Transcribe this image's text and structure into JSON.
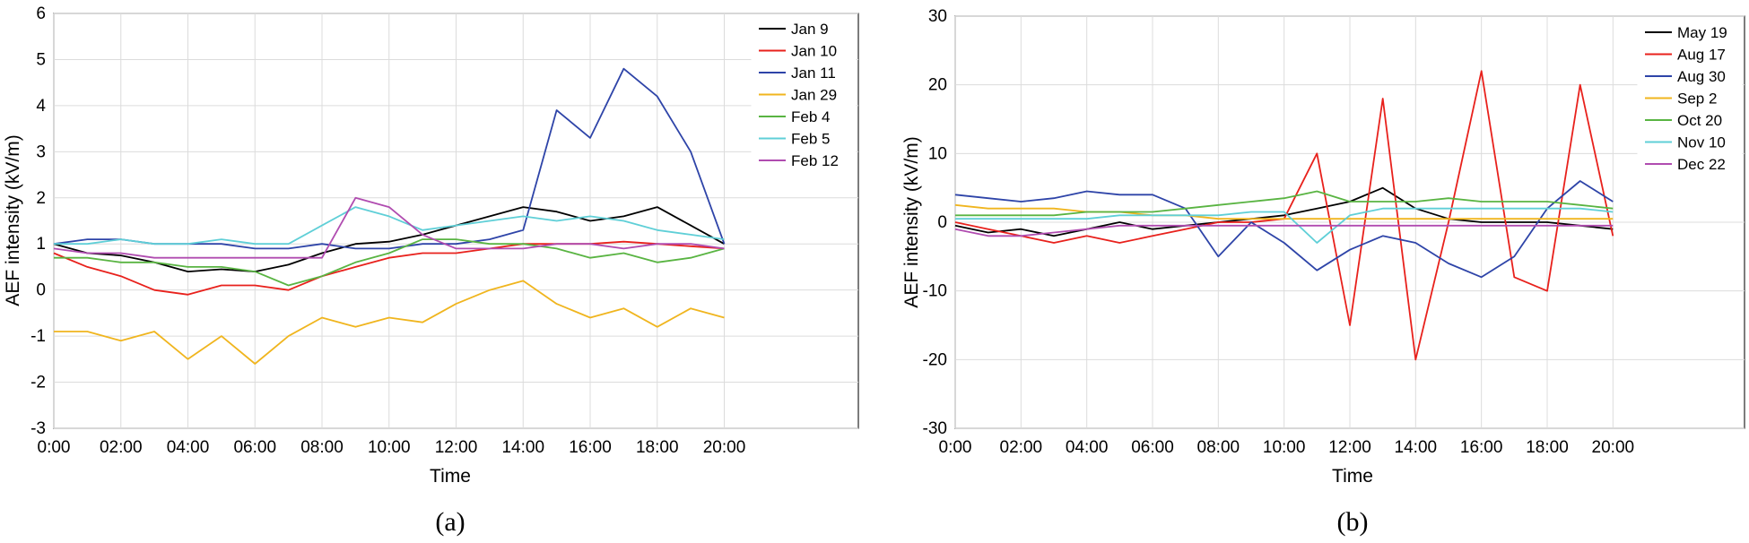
{
  "chart_data": [
    {
      "type": "line",
      "caption": "(a)",
      "xlabel": "Time",
      "ylabel": "AEF intensity (kV/m)",
      "xticks": [
        "0:00",
        "02:00",
        "04:00",
        "06:00",
        "08:00",
        "10:00",
        "12:00",
        "14:00",
        "16:00",
        "18:00",
        "20:00"
      ],
      "xlim_hours": [
        0,
        24
      ],
      "ylim": [
        -3,
        6
      ],
      "yticks": [
        -3,
        -2,
        -1,
        0,
        1,
        2,
        3,
        4,
        5,
        6
      ],
      "legend_position": "top-right",
      "x_hours": [
        0,
        1,
        2,
        3,
        4,
        5,
        6,
        7,
        8,
        9,
        10,
        11,
        12,
        13,
        14,
        15,
        16,
        17,
        18,
        19,
        20
      ],
      "series": [
        {
          "name": "Jan 9",
          "color": "#000000",
          "values": [
            1.0,
            0.8,
            0.75,
            0.6,
            0.4,
            0.45,
            0.4,
            0.55,
            0.8,
            1.0,
            1.05,
            1.2,
            1.4,
            1.6,
            1.8,
            1.7,
            1.5,
            1.6,
            1.8,
            1.4,
            1.0
          ]
        },
        {
          "name": "Jan 10",
          "color": "#e8211c",
          "values": [
            0.8,
            0.5,
            0.3,
            0.0,
            -0.1,
            0.1,
            0.1,
            0.0,
            0.3,
            0.5,
            0.7,
            0.8,
            0.8,
            0.9,
            1.0,
            1.0,
            1.0,
            1.05,
            1.0,
            0.95,
            0.9
          ]
        },
        {
          "name": "Jan 11",
          "color": "#2e44a8",
          "values": [
            1.0,
            1.1,
            1.1,
            1.0,
            1.0,
            1.0,
            0.9,
            0.9,
            1.0,
            0.9,
            0.9,
            1.0,
            1.0,
            1.1,
            1.3,
            3.9,
            3.3,
            4.8,
            4.2,
            3.0,
            1.0
          ]
        },
        {
          "name": "Jan 29",
          "color": "#f0b51e",
          "values": [
            -0.9,
            -0.9,
            -1.1,
            -0.9,
            -1.5,
            -1.0,
            -1.6,
            -1.0,
            -0.6,
            -0.8,
            -0.6,
            -0.7,
            -0.3,
            0.0,
            0.2,
            -0.3,
            -0.6,
            -0.4,
            -0.8,
            -0.4,
            -0.6
          ]
        },
        {
          "name": "Feb 4",
          "color": "#59b442",
          "values": [
            0.7,
            0.7,
            0.6,
            0.6,
            0.5,
            0.5,
            0.4,
            0.1,
            0.3,
            0.6,
            0.8,
            1.1,
            1.1,
            1.0,
            1.0,
            0.9,
            0.7,
            0.8,
            0.6,
            0.7,
            0.9
          ]
        },
        {
          "name": "Feb 5",
          "color": "#5fcfd7",
          "values": [
            1.0,
            1.0,
            1.1,
            1.0,
            1.0,
            1.1,
            1.0,
            1.0,
            1.4,
            1.8,
            1.6,
            1.3,
            1.4,
            1.5,
            1.6,
            1.5,
            1.6,
            1.5,
            1.3,
            1.2,
            1.1
          ]
        },
        {
          "name": "Feb 12",
          "color": "#b04cb0",
          "values": [
            0.9,
            0.8,
            0.8,
            0.7,
            0.7,
            0.7,
            0.7,
            0.7,
            0.7,
            2.0,
            1.8,
            1.2,
            0.9,
            0.9,
            0.9,
            1.0,
            1.0,
            0.9,
            1.0,
            1.0,
            0.9
          ]
        }
      ]
    },
    {
      "type": "line",
      "caption": "(b)",
      "xlabel": "Time",
      "ylabel": "AEF intensity (kV/m)",
      "xticks": [
        "0:00",
        "02:00",
        "04:00",
        "06:00",
        "08:00",
        "10:00",
        "12:00",
        "14:00",
        "16:00",
        "18:00",
        "20:00"
      ],
      "xlim_hours": [
        0,
        24
      ],
      "ylim": [
        -30,
        30
      ],
      "yticks": [
        -30,
        -20,
        -10,
        0,
        10,
        20,
        30
      ],
      "legend_position": "top-right",
      "x_hours": [
        0,
        1,
        2,
        3,
        4,
        5,
        6,
        7,
        8,
        9,
        10,
        11,
        12,
        13,
        14,
        15,
        16,
        17,
        18,
        19,
        20
      ],
      "series": [
        {
          "name": "May 19",
          "color": "#000000",
          "values": [
            -0.5,
            -1.5,
            -1.0,
            -2.0,
            -1.0,
            0.0,
            -1.0,
            -0.5,
            0.0,
            0.5,
            1.0,
            2.0,
            3.0,
            5.0,
            2.0,
            0.5,
            0.0,
            0.0,
            0.0,
            -0.5,
            -1.0
          ]
        },
        {
          "name": "Aug 17",
          "color": "#e8211c",
          "values": [
            0.0,
            -1.0,
            -2.0,
            -3.0,
            -2.0,
            -3.0,
            -2.0,
            -1.0,
            0.0,
            0.0,
            0.5,
            10.0,
            -15.0,
            18.0,
            -20.0,
            0.0,
            22.0,
            -8.0,
            -10.0,
            20.0,
            -2.0
          ]
        },
        {
          "name": "Aug 30",
          "color": "#2e44a8",
          "values": [
            4.0,
            3.5,
            3.0,
            3.5,
            4.5,
            4.0,
            4.0,
            2.0,
            -5.0,
            0.0,
            -3.0,
            -7.0,
            -4.0,
            -2.0,
            -3.0,
            -6.0,
            -8.0,
            -5.0,
            2.0,
            6.0,
            3.0
          ]
        },
        {
          "name": "Sep 2",
          "color": "#f0b51e",
          "values": [
            2.5,
            2.0,
            2.0,
            2.0,
            1.5,
            1.5,
            1.0,
            1.0,
            0.5,
            0.5,
            0.5,
            0.5,
            0.5,
            0.5,
            0.5,
            0.5,
            0.5,
            0.5,
            0.5,
            0.5,
            0.5
          ]
        },
        {
          "name": "Oct 20",
          "color": "#59b442",
          "values": [
            1.0,
            1.0,
            1.0,
            1.0,
            1.5,
            1.5,
            1.5,
            2.0,
            2.5,
            3.0,
            3.5,
            4.5,
            3.0,
            3.0,
            3.0,
            3.5,
            3.0,
            3.0,
            3.0,
            2.5,
            2.0
          ]
        },
        {
          "name": "Nov 10",
          "color": "#5fcfd7",
          "values": [
            0.5,
            0.5,
            0.5,
            0.5,
            0.5,
            1.0,
            1.0,
            1.0,
            1.0,
            1.5,
            1.5,
            -3.0,
            1.0,
            2.0,
            2.0,
            2.0,
            2.0,
            2.0,
            2.0,
            2.0,
            1.5
          ]
        },
        {
          "name": "Dec 22",
          "color": "#b04cb0",
          "values": [
            -1.0,
            -2.0,
            -2.0,
            -1.5,
            -1.0,
            -0.5,
            -0.5,
            -0.5,
            -0.5,
            -0.5,
            -0.5,
            -0.5,
            -0.5,
            -0.5,
            -0.5,
            -0.5,
            -0.5,
            -0.5,
            -0.5,
            -0.5,
            -0.5
          ]
        }
      ]
    }
  ]
}
